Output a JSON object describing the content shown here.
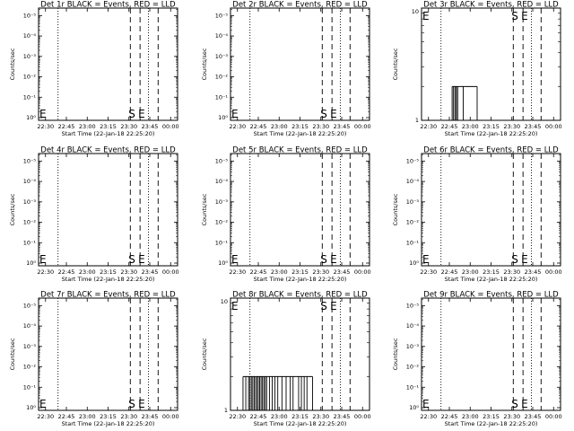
{
  "shared": {
    "xlabel": "Start Time (22-Jan-18 22:25:20)",
    "ylabel": "Counts/sec",
    "x_ticks": [
      "22:30",
      "22:45",
      "23:00",
      "23:15",
      "23:30",
      "23:45",
      "00:00"
    ],
    "y_ticks_log": [
      "10⁰",
      "10⁻¹",
      "10⁻²",
      "10⁻³",
      "10⁻⁴",
      "10⁻⁵"
    ],
    "colors": {
      "events": "#000000",
      "lld": "#ff0000",
      "axes": "#000000"
    }
  },
  "chart_data": [
    {
      "type": "line",
      "title": "Det 1r BLACK = Events, RED = LLD",
      "yscale": "log-inverted",
      "y_ticks": [
        "10⁰",
        "10⁻¹",
        "10⁻²",
        "10⁻³",
        "10⁻⁴",
        "10⁻⁵"
      ],
      "markers": [
        {
          "label": "E",
          "x": "22:25"
        },
        {
          "label": "S",
          "x": "23:31"
        },
        {
          "label": "E",
          "x": "23:38"
        }
      ],
      "dotted_x": [
        "22:39",
        "23:44"
      ],
      "dashed_x": [
        "23:31",
        "23:38",
        "23:51"
      ],
      "series": []
    },
    {
      "type": "line",
      "title": "Det 2r BLACK = Events, RED = LLD",
      "yscale": "log-inverted",
      "y_ticks": [
        "10⁰",
        "10⁻¹",
        "10⁻²",
        "10⁻³",
        "10⁻⁴",
        "10⁻⁵"
      ],
      "markers": [
        {
          "label": "E",
          "x": "22:25"
        },
        {
          "label": "S",
          "x": "23:31"
        },
        {
          "label": "E",
          "x": "23:38"
        }
      ],
      "dotted_x": [
        "22:39",
        "23:44"
      ],
      "dashed_x": [
        "23:31",
        "23:38",
        "23:51"
      ],
      "series": []
    },
    {
      "type": "line",
      "title": "Det 3r BLACK = Events, RED = LLD",
      "yscale": "linear",
      "y_ticks": [
        "1",
        "10"
      ],
      "markers": [
        {
          "label": "E",
          "x": "22:25"
        },
        {
          "label": "S",
          "x": "23:31"
        },
        {
          "label": "E",
          "x": "23:38"
        }
      ],
      "dotted_x": [
        "22:39",
        "23:44"
      ],
      "dashed_x": [
        "23:31",
        "23:38",
        "23:51"
      ],
      "series": [
        {
          "name": "Events",
          "spikes_x": [
            "22:47",
            "22:48",
            "22:49",
            "22:50",
            "22:50",
            "22:51",
            "22:55",
            "23:05"
          ],
          "spike_value": 2
        }
      ]
    },
    {
      "type": "line",
      "title": "Det 4r BLACK = Events, RED = LLD",
      "yscale": "log-inverted",
      "y_ticks": [
        "10⁰",
        "10⁻¹",
        "10⁻²",
        "10⁻³",
        "10⁻⁴",
        "10⁻⁵"
      ],
      "markers": [
        {
          "label": "E",
          "x": "22:25"
        },
        {
          "label": "S",
          "x": "23:31"
        },
        {
          "label": "E",
          "x": "23:38"
        }
      ],
      "dotted_x": [
        "22:39",
        "23:44"
      ],
      "dashed_x": [
        "23:31",
        "23:38",
        "23:51"
      ],
      "series": []
    },
    {
      "type": "line",
      "title": "Det 5r BLACK = Events, RED = LLD",
      "yscale": "log-inverted",
      "y_ticks": [
        "10⁰",
        "10⁻¹",
        "10⁻²",
        "10⁻³",
        "10⁻⁴",
        "10⁻⁵"
      ],
      "markers": [
        {
          "label": "E",
          "x": "22:25"
        },
        {
          "label": "S",
          "x": "23:31"
        },
        {
          "label": "E",
          "x": "23:38"
        }
      ],
      "dotted_x": [
        "22:39",
        "23:44"
      ],
      "dashed_x": [
        "23:31",
        "23:38",
        "23:51"
      ],
      "series": []
    },
    {
      "type": "line",
      "title": "Det 6r BLACK = Events, RED = LLD",
      "yscale": "log-inverted",
      "y_ticks": [
        "10⁰",
        "10⁻¹",
        "10⁻²",
        "10⁻³",
        "10⁻⁴",
        "10⁻⁵"
      ],
      "markers": [
        {
          "label": "E",
          "x": "22:25"
        },
        {
          "label": "S",
          "x": "23:31"
        },
        {
          "label": "E",
          "x": "23:38"
        }
      ],
      "dotted_x": [
        "22:39",
        "23:44"
      ],
      "dashed_x": [
        "23:31",
        "23:38",
        "23:51"
      ],
      "series": []
    },
    {
      "type": "line",
      "title": "Det 7r BLACK = Events, RED = LLD",
      "yscale": "log-inverted",
      "y_ticks": [
        "10⁰",
        "10⁻¹",
        "10⁻²",
        "10⁻³",
        "10⁻⁴",
        "10⁻⁵"
      ],
      "markers": [
        {
          "label": "E",
          "x": "22:25"
        },
        {
          "label": "S",
          "x": "23:31"
        },
        {
          "label": "E",
          "x": "23:38"
        }
      ],
      "dotted_x": [
        "22:39",
        "23:44"
      ],
      "dashed_x": [
        "23:31",
        "23:38",
        "23:51"
      ],
      "series": []
    },
    {
      "type": "line",
      "title": "Det 8r BLACK = Events, RED = LLD",
      "yscale": "linear",
      "y_ticks": [
        "1",
        "10"
      ],
      "markers": [
        {
          "label": "E",
          "x": "22:25"
        },
        {
          "label": "S",
          "x": "23:31"
        },
        {
          "label": "E",
          "x": "23:38"
        }
      ],
      "dotted_x": [
        "22:39",
        "23:44"
      ],
      "dashed_x": [
        "23:31",
        "23:38",
        "23:51"
      ],
      "series": [
        {
          "name": "Events",
          "spikes_x": [
            "22:34",
            "22:36",
            "22:38",
            "22:39",
            "22:40",
            "22:41",
            "22:42",
            "22:43",
            "22:44",
            "22:45",
            "22:46",
            "22:47",
            "22:48",
            "22:49",
            "22:50",
            "22:51",
            "22:53",
            "22:55",
            "22:57",
            "22:59",
            "23:02",
            "23:05",
            "23:08",
            "23:10",
            "23:14",
            "23:16",
            "23:18",
            "23:20",
            "23:24"
          ],
          "spike_value": 2
        }
      ]
    },
    {
      "type": "line",
      "title": "Det 9r BLACK = Events, RED = LLD",
      "yscale": "log-inverted",
      "y_ticks": [
        "10⁰",
        "10⁻¹",
        "10⁻²",
        "10⁻³",
        "10⁻⁴",
        "10⁻⁵"
      ],
      "markers": [
        {
          "label": "E",
          "x": "22:25"
        },
        {
          "label": "S",
          "x": "23:31"
        },
        {
          "label": "E",
          "x": "23:38"
        }
      ],
      "dotted_x": [
        "22:39",
        "23:44"
      ],
      "dashed_x": [
        "23:31",
        "23:38",
        "23:51"
      ],
      "series": []
    }
  ]
}
